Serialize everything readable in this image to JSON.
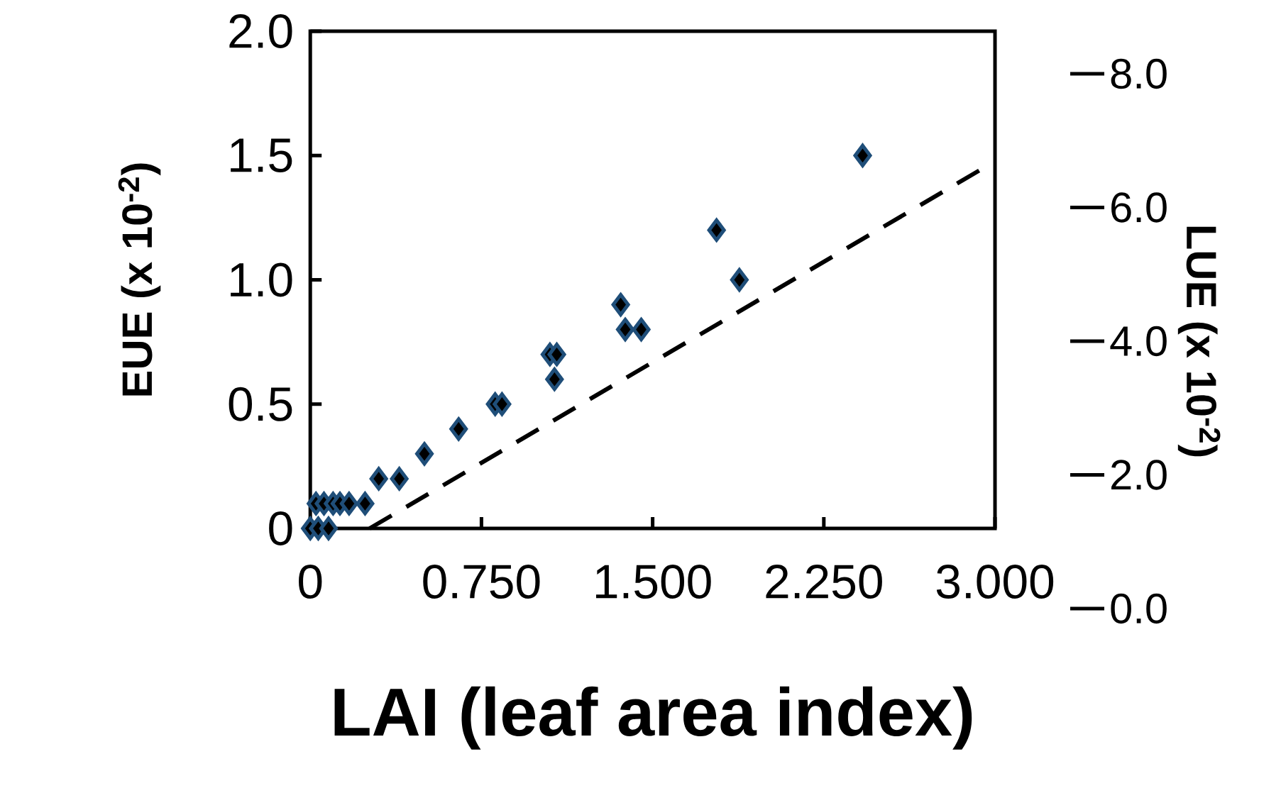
{
  "chart_data": {
    "type": "scatter",
    "xlabel": "LAI (leaf area index)",
    "ylabel": "EUE (x 10$^{-2}$)",
    "y2label": "LUE (x 10$^{-2}$)",
    "xlim": [
      0,
      3.0
    ],
    "ylim": [
      0,
      2.0
    ],
    "y2lim": [
      0,
      8.0
    ],
    "xticks": [
      0,
      {
        "value": 0.75,
        "label": "0.750"
      },
      {
        "value": 1.5,
        "label": "1.500"
      },
      {
        "value": 2.25,
        "label": "2.250"
      },
      {
        "value": 3.0,
        "label": "3.000"
      }
    ],
    "yticks": [
      0,
      0.5,
      {
        "value": 1.0,
        "label": "1.0"
      },
      1.5,
      {
        "value": 2.0,
        "label": "2.0"
      }
    ],
    "y2ticks": [
      {
        "value": 0,
        "label": "0.0"
      },
      {
        "value": 2,
        "label": "2.0"
      },
      {
        "value": 4,
        "label": "4.0"
      },
      {
        "value": 6,
        "label": "6.0"
      },
      {
        "value": 8,
        "label": "8.0"
      }
    ],
    "marker": "diamond",
    "series": [
      {
        "color": "#1f4e79",
        "x": [
          0,
          0.035,
          0.08,
          0.025,
          0.06,
          0.1,
          0.13,
          0.17,
          0.24,
          0.3,
          0.39,
          0.5,
          0.65,
          0.81,
          0.84,
          1.05,
          1.08,
          1.07,
          1.36,
          1.38,
          1.45,
          1.78,
          1.88,
          2.42
        ],
        "values": [
          0,
          0,
          0,
          0.1,
          0.1,
          0.1,
          0.1,
          0.1,
          0.1,
          0.2,
          0.2,
          0.3,
          0.4,
          0.5,
          0.5,
          0.7,
          0.7,
          0.6,
          0.9,
          0.8,
          0.8,
          1.2,
          1.0,
          1.5
        ]
      },
      {
        "type": "line",
        "color": "#000000",
        "line_style": "dashed",
        "marker": "none",
        "x": [
          0.26,
          2.95
        ],
        "values": [
          0,
          1.45
        ]
      }
    ]
  }
}
